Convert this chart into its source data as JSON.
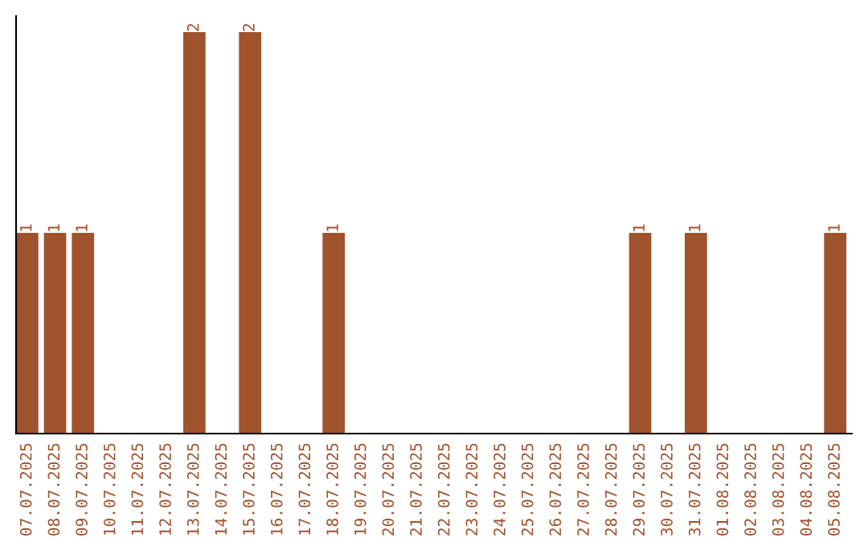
{
  "chart_data": {
    "type": "bar",
    "categories": [
      "07.07.2025",
      "08.07.2025",
      "09.07.2025",
      "10.07.2025",
      "11.07.2025",
      "12.07.2025",
      "13.07.2025",
      "14.07.2025",
      "15.07.2025",
      "16.07.2025",
      "17.07.2025",
      "18.07.2025",
      "19.07.2025",
      "20.07.2025",
      "21.07.2025",
      "22.07.2025",
      "23.07.2025",
      "24.07.2025",
      "25.07.2025",
      "26.07.2025",
      "27.07.2025",
      "28.07.2025",
      "29.07.2025",
      "30.07.2025",
      "31.07.2025",
      "01.08.2025",
      "02.08.2025",
      "03.08.2025",
      "04.08.2025",
      "05.08.2025"
    ],
    "values": [
      1,
      1,
      1,
      0,
      0,
      0,
      2,
      0,
      2,
      0,
      0,
      1,
      0,
      0,
      0,
      0,
      0,
      0,
      0,
      0,
      0,
      0,
      1,
      0,
      1,
      0,
      0,
      0,
      0,
      1
    ],
    "value_labels": [
      "1",
      "1",
      "1",
      null,
      null,
      null,
      "2",
      null,
      "2",
      null,
      null,
      "1",
      null,
      null,
      null,
      null,
      null,
      null,
      null,
      null,
      null,
      null,
      "1",
      null,
      "1",
      null,
      null,
      null,
      null,
      "1"
    ],
    "color": "#a0522d",
    "ylim": [
      0,
      2.08
    ],
    "tick_labels": "x",
    "grid": false,
    "legend": false
  }
}
